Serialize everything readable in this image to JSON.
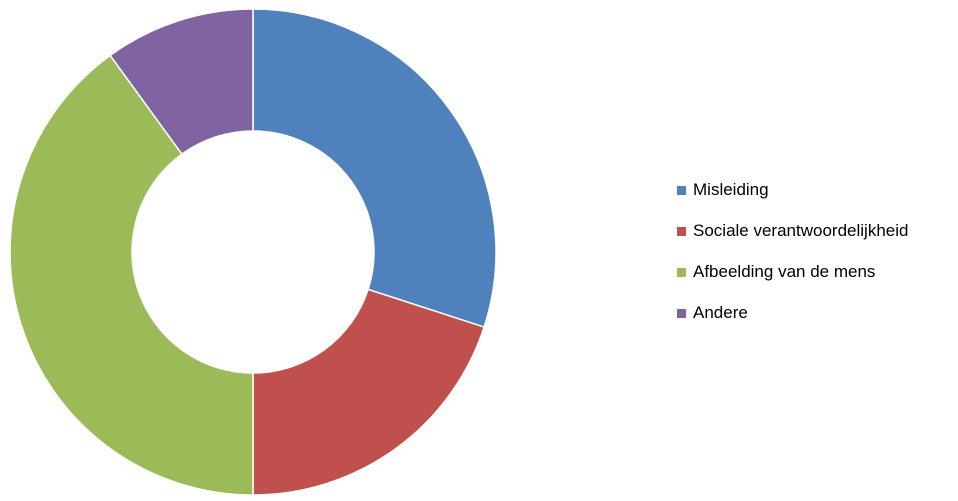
{
  "chart_data": {
    "type": "pie",
    "variant": "doughnut",
    "title": "",
    "categories": [
      "Misleiding",
      "Sociale verantwoordelijkheid",
      "Afbeelding van de mens",
      "Andere"
    ],
    "values": [
      30,
      20,
      40,
      10
    ],
    "colors": [
      "#4f81bd",
      "#c0504d",
      "#9bbb59",
      "#8064a2"
    ],
    "legend_position": "right",
    "start_angle": "top, clockwise"
  }
}
